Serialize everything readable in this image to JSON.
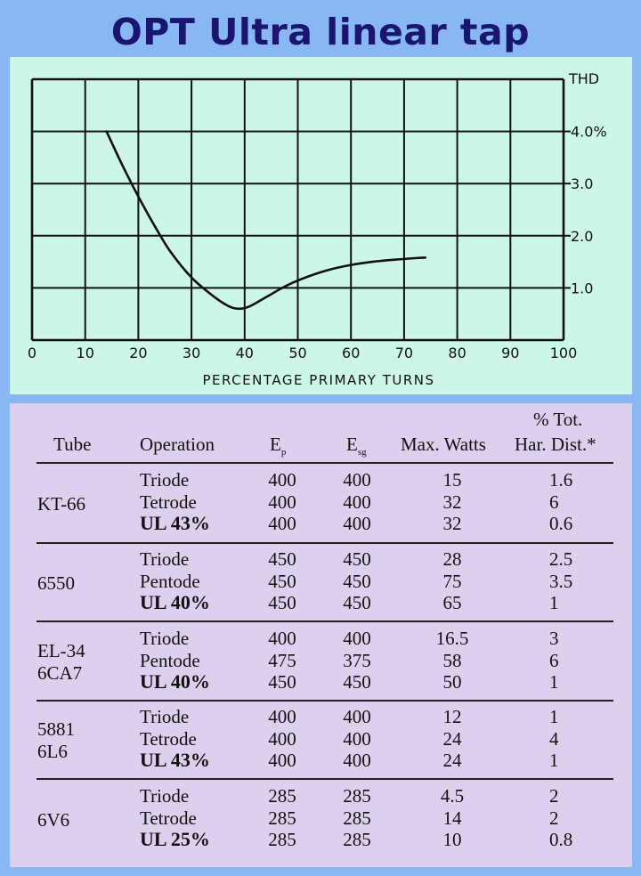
{
  "title": "OPT Ultra linear tap",
  "chart_data": {
    "type": "line",
    "xlabel": "PERCENTAGE PRIMARY TURNS",
    "ylabel": "THD",
    "x_ticks": [
      "0",
      "10",
      "20",
      "30",
      "40",
      "50",
      "60",
      "70",
      "80",
      "90",
      "100"
    ],
    "y_ticks": [
      "1.0",
      "2.0",
      "3.0",
      "4.0%"
    ],
    "xlim": [
      0,
      100
    ],
    "ylim": [
      0,
      5
    ],
    "grid": true,
    "series": [
      {
        "x": [
          14,
          17,
          20,
          23,
          26,
          30,
          34,
          37,
          39,
          41,
          44,
          48,
          52,
          56,
          60,
          64,
          68,
          72,
          74
        ],
        "y": [
          4.0,
          3.35,
          2.75,
          2.2,
          1.7,
          1.2,
          0.85,
          0.65,
          0.6,
          0.65,
          0.82,
          1.05,
          1.22,
          1.35,
          1.44,
          1.5,
          1.54,
          1.57,
          1.58
        ]
      }
    ]
  },
  "table": {
    "headers": {
      "tube": "Tube",
      "operation": "Operation",
      "ep": "E",
      "ep_sub": "p",
      "esg": "E",
      "esg_sub": "sg",
      "watts": "Max. Watts",
      "thd_line1": "% Tot.",
      "thd_line2": "Har. Dist.*"
    },
    "groups": [
      {
        "tube_line1": "KT-66",
        "tube_line2": "",
        "rows": [
          {
            "op": "Triode",
            "ep": "400",
            "esg": "400",
            "watts": "15",
            "thd": "1.6",
            "bold": false
          },
          {
            "op": "Tetrode",
            "ep": "400",
            "esg": "400",
            "watts": "32",
            "thd": "6",
            "bold": false
          },
          {
            "op": "UL 43%",
            "ep": "400",
            "esg": "400",
            "watts": "32",
            "thd": "0.6",
            "bold": true
          }
        ]
      },
      {
        "tube_line1": "6550",
        "tube_line2": "",
        "rows": [
          {
            "op": "Triode",
            "ep": "450",
            "esg": "450",
            "watts": "28",
            "thd": "2.5",
            "bold": false
          },
          {
            "op": "Pentode",
            "ep": "450",
            "esg": "450",
            "watts": "75",
            "thd": "3.5",
            "bold": false
          },
          {
            "op": "UL 40%",
            "ep": "450",
            "esg": "450",
            "watts": "65",
            "thd": "1",
            "bold": true
          }
        ]
      },
      {
        "tube_line1": "EL-34",
        "tube_line2": "6CA7",
        "rows": [
          {
            "op": "Triode",
            "ep": "400",
            "esg": "400",
            "watts": "16.5",
            "thd": "3",
            "bold": false
          },
          {
            "op": "Pentode",
            "ep": "475",
            "esg": "375",
            "watts": "58",
            "thd": "6",
            "bold": false
          },
          {
            "op": "UL 40%",
            "ep": "450",
            "esg": "450",
            "watts": "50",
            "thd": "1",
            "bold": true
          }
        ]
      },
      {
        "tube_line1": "5881",
        "tube_line2": "6L6",
        "rows": [
          {
            "op": "Triode",
            "ep": "400",
            "esg": "400",
            "watts": "12",
            "thd": "1",
            "bold": false
          },
          {
            "op": "Tetrode",
            "ep": "400",
            "esg": "400",
            "watts": "24",
            "thd": "4",
            "bold": false
          },
          {
            "op": "UL 43%",
            "ep": "400",
            "esg": "400",
            "watts": "24",
            "thd": "1",
            "bold": true
          }
        ]
      },
      {
        "tube_line1": "6V6",
        "tube_line2": "",
        "rows": [
          {
            "op": "Triode",
            "ep": "285",
            "esg": "285",
            "watts": "4.5",
            "thd": "2",
            "bold": false
          },
          {
            "op": "Tetrode",
            "ep": "285",
            "esg": "285",
            "watts": "14",
            "thd": "2",
            "bold": false
          },
          {
            "op": "UL 25%",
            "ep": "285",
            "esg": "285",
            "watts": "10",
            "thd": "0.8",
            "bold": true
          }
        ]
      }
    ]
  }
}
